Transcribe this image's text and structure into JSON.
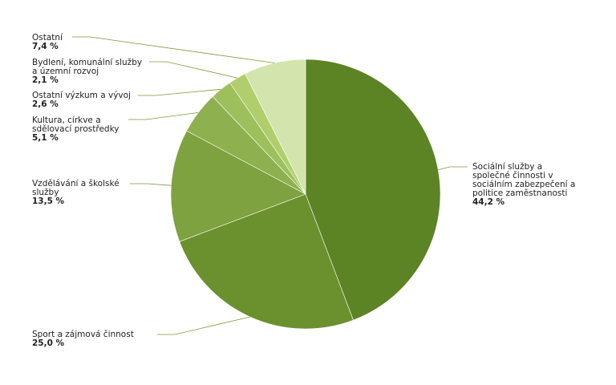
{
  "chart_data": {
    "type": "pie",
    "categories": [
      "Sociální služby a společné činnosti v sociálním zabezpečení a politice zaměstnanosti",
      "Sport a zájmová činnost",
      "Vzdělávání a školské služby",
      "Kultura, církve a sdělovací prostředky",
      "Ostatní výzkum a vývoj",
      "Bydlení, komunální služby a územní rozvoj",
      "Ostatní"
    ],
    "values": [
      44.2,
      25.0,
      13.5,
      5.1,
      2.6,
      2.1,
      7.4
    ],
    "value_labels": [
      "44,2 %",
      "25,0 %",
      "13,5 %",
      "5,1 %",
      "2,6 %",
      "2,1 %",
      "7,4 %"
    ],
    "colors": [
      "#5c8324",
      "#6b902e",
      "#7ea23f",
      "#8fb04e",
      "#9ec05c",
      "#b0cf6c",
      "#d3e5ac"
    ]
  }
}
